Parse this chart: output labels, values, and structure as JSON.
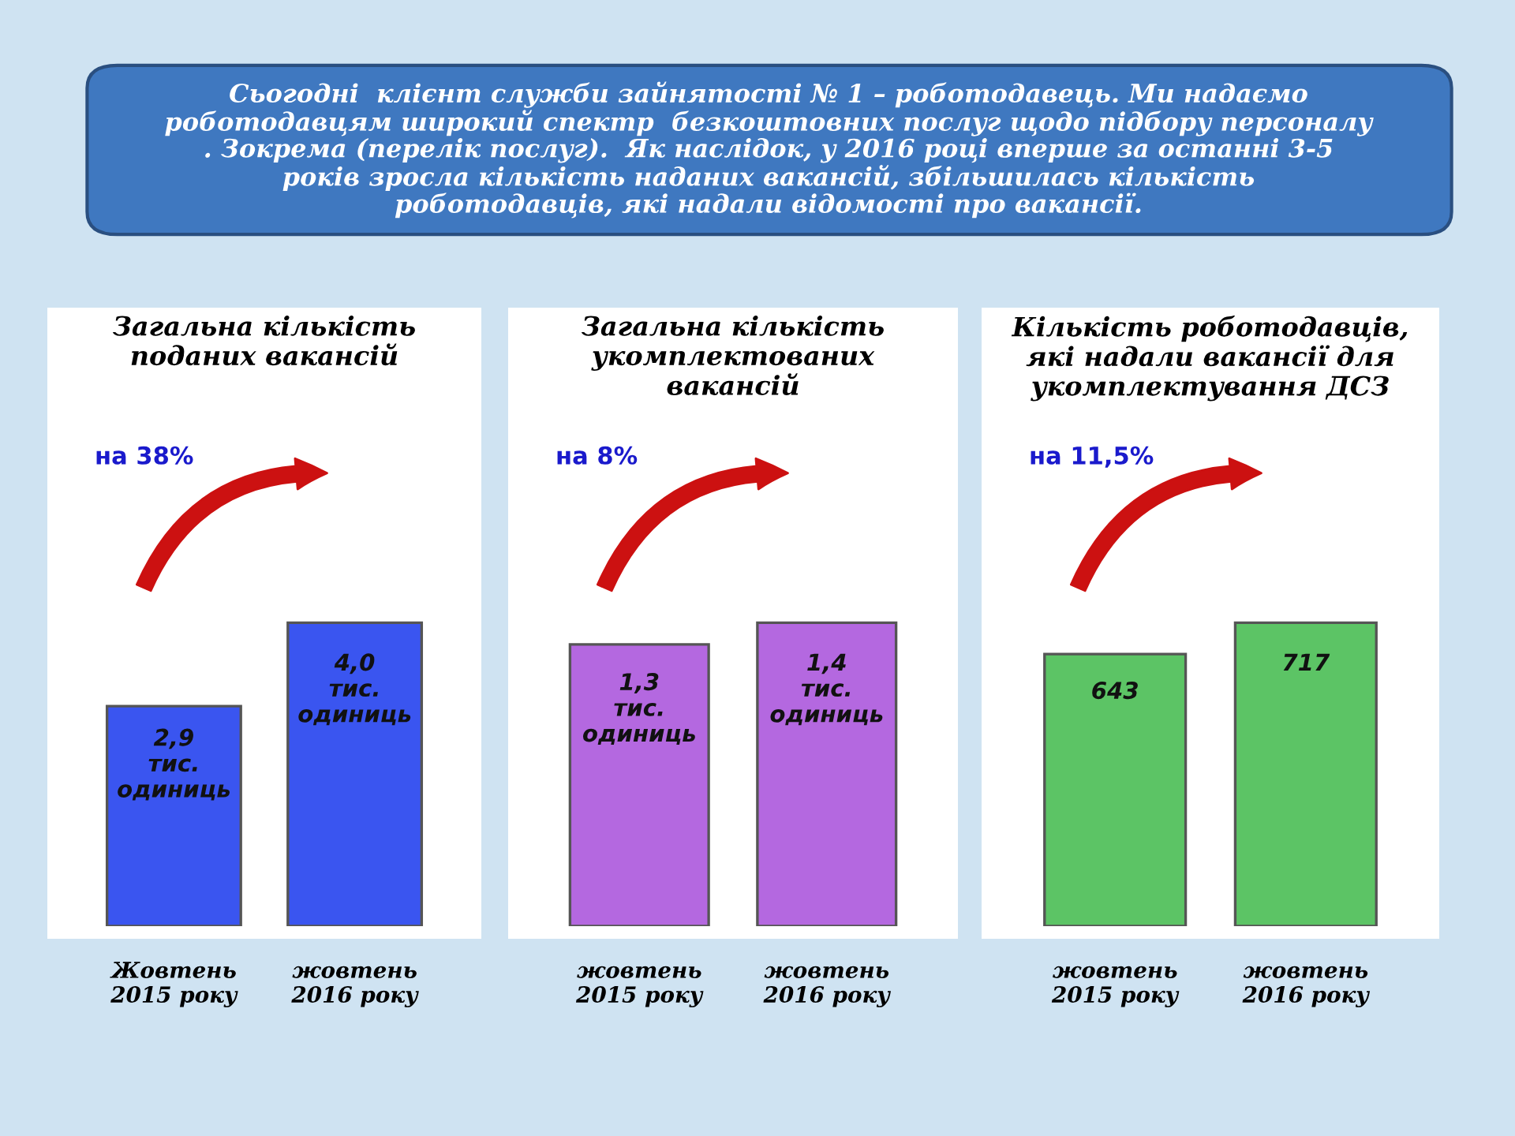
{
  "chart_data": [
    {
      "type": "bar",
      "title": "Загальна кількість\nподаних вакансій",
      "categories": [
        "Жовтень\n2015 року",
        "жовтень\n2016 року"
      ],
      "values": [
        2.9,
        4.0
      ],
      "color": "#3a55f0",
      "value_labels": [
        "2,9\nтис.\nодиниць",
        "4,0\nтис.\nодиниць"
      ],
      "annotations": [
        "Сьогодні  клієнт служби зайнятості № 1 – роботодавець. Ми надаємо\nроботодавцям широкий спектр  безкоштовних послуг щодо підбору персоналу\n. Зокрема (перелік послуг).  Як наслідок, у 2016 році вперше за останні 3-5\nроків зросла кількість наданих вакансій, збільшилась кількість\nроботодавців, які надали відомості про вакансії.",
        "на 38%"
      ],
      "tick_labels": "x",
      "grid": false,
      "legend": false
    },
    {
      "type": "bar",
      "title": "Загальна кількість\nукомплектованих\nвакансій",
      "categories": [
        "жовтень\n2015 року",
        "жовтень\n2016 року"
      ],
      "values": [
        1.3,
        1.4
      ],
      "color": "#b468e0",
      "value_labels": [
        "1,3\nтис.\nодиниць",
        "1,4\nтис.\nодиниць"
      ],
      "annotations": [
        "на 8%"
      ],
      "tick_labels": "x",
      "grid": false,
      "legend": false
    },
    {
      "type": "bar",
      "title": "Кількість роботодавців,\nякі надали вакансії для\nукомплектування ДСЗ",
      "categories": [
        "жовтень\n2015 року",
        "жовтень\n2016 року"
      ],
      "values": [
        643,
        717
      ],
      "color": "#5cc465",
      "data_labels": true,
      "annotations": [
        "на 11,5%"
      ],
      "tick_labels": "x",
      "grid": false,
      "legend": false
    }
  ]
}
